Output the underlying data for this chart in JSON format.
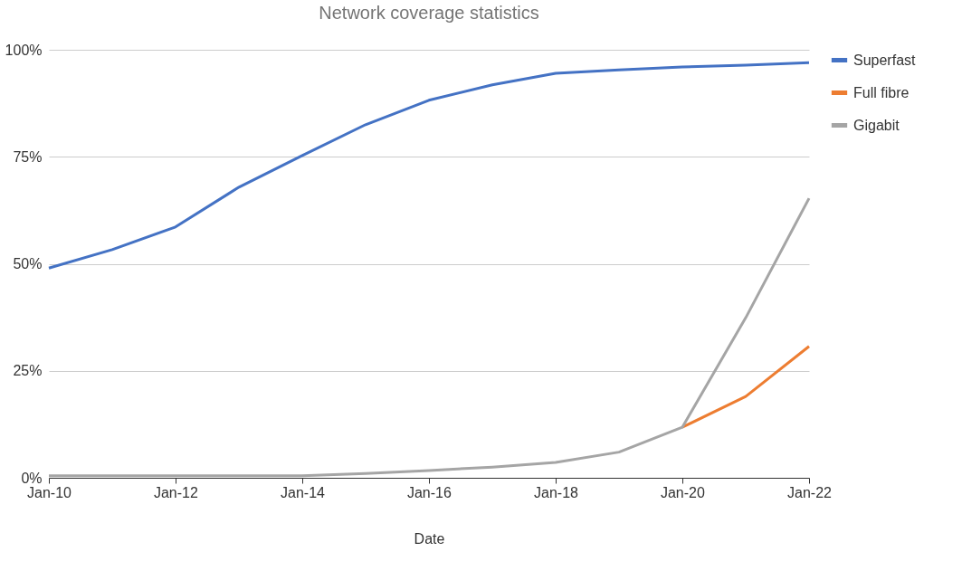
{
  "chart_data": {
    "type": "line",
    "title": "Network coverage statistics",
    "xlabel": "Date",
    "x": [
      "2010-01",
      "2011-01",
      "2012-01",
      "2013-01",
      "2014-01",
      "2015-01",
      "2016-01",
      "2017-01",
      "2018-01",
      "2019-01",
      "2020-01",
      "2021-01",
      "2022-01"
    ],
    "series": [
      {
        "name": "Superfast",
        "color": "#4472c4",
        "values": [
          49,
          53.3,
          58.6,
          67.9,
          75.3,
          82.5,
          88.2,
          91.8,
          94.5,
          95.3,
          96,
          96.4,
          97
        ]
      },
      {
        "name": "Full fibre",
        "color": "#ed7d31",
        "values": [
          null,
          null,
          null,
          null,
          null,
          null,
          null,
          null,
          null,
          null,
          11.8,
          19,
          30.7
        ]
      },
      {
        "name": "Gigabit",
        "color": "#a5a5a5",
        "values": [
          0.5,
          0.5,
          0.5,
          0.5,
          0.5,
          1,
          1.7,
          2.5,
          3.6,
          6,
          11.8,
          37.4,
          65.3
        ]
      }
    ],
    "xlim": [
      "2010-01",
      "2022-01"
    ],
    "xticks": [
      {
        "value": "2010-01",
        "label": "Jan-10"
      },
      {
        "value": "2012-01",
        "label": "Jan-12"
      },
      {
        "value": "2014-01",
        "label": "Jan-14"
      },
      {
        "value": "2016-01",
        "label": "Jan-16"
      },
      {
        "value": "2018-01",
        "label": "Jan-18"
      },
      {
        "value": "2020-01",
        "label": "Jan-20"
      },
      {
        "value": "2022-01",
        "label": "Jan-22"
      }
    ],
    "ylim": [
      0,
      100
    ],
    "yticks": [
      {
        "value": 0,
        "label": "0%"
      },
      {
        "value": 25,
        "label": "25%"
      },
      {
        "value": 50,
        "label": "50%"
      },
      {
        "value": 75,
        "label": "75%"
      },
      {
        "value": 100,
        "label": "100%"
      }
    ],
    "grid": "y",
    "legend": "top right",
    "marker": "none",
    "line_style": "solid"
  }
}
